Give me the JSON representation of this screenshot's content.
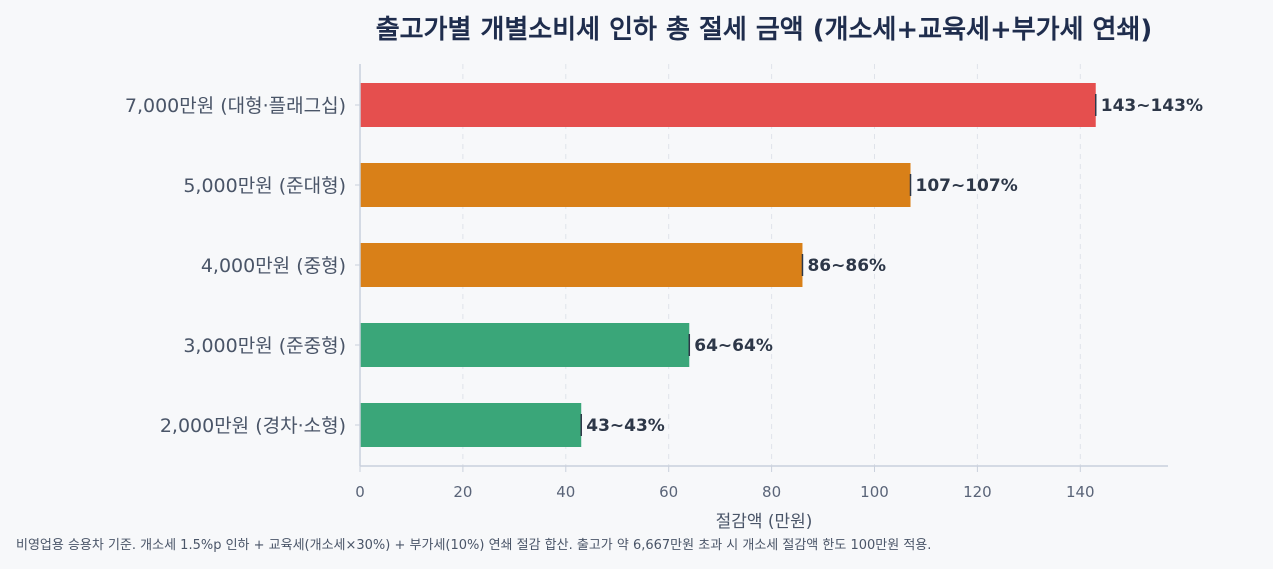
{
  "chart_data": {
    "type": "bar",
    "orientation": "horizontal",
    "title": "출고가별 개별소비세 인하 총 절세 금액 (개소세+교육세+부가세 연쇄)",
    "xlabel": "절감액 (만원)",
    "ylabel": "",
    "xlim": [
      0,
      157
    ],
    "xticks": [
      0,
      20,
      40,
      60,
      80,
      100,
      120,
      140
    ],
    "grid": "x-dashed",
    "categories": [
      "7,000만원 (대형·플래그십)",
      "5,000만원 (준대형)",
      "4,000만원 (중형)",
      "3,000만원 (준중형)",
      "2,000만원 (경차·소형)"
    ],
    "values": [
      143,
      107,
      86,
      64,
      43
    ],
    "data_labels": [
      "143~143%",
      "107~107%",
      "86~86%",
      "64~64%",
      "43~43%"
    ],
    "colors": [
      "#e54f4e",
      "#d98018",
      "#d98018",
      "#3aa679",
      "#3aa679"
    ]
  },
  "footnote": "비영업용 승용차 기준. 개소세 1.5%p 인하 + 교육세(개소세×30%) + 부가세(10%) 연쇄 절감 합산. 출고가 약 6,667만원 초과 시 개소세 절감액 한도 100만원 적용."
}
